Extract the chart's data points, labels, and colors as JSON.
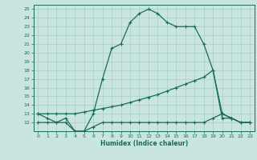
{
  "title": "",
  "xlabel": "Humidex (Indice chaleur)",
  "xlim": [
    -0.5,
    23.5
  ],
  "ylim": [
    11,
    25.5
  ],
  "yticks": [
    12,
    13,
    14,
    15,
    16,
    17,
    18,
    19,
    20,
    21,
    22,
    23,
    24,
    25
  ],
  "xticks": [
    0,
    1,
    2,
    3,
    4,
    5,
    6,
    7,
    8,
    9,
    10,
    11,
    12,
    13,
    14,
    15,
    16,
    17,
    18,
    19,
    20,
    21,
    22,
    23
  ],
  "bg_color": "#c8e6df",
  "line_color": "#1a6b5a",
  "grid_color": "#a8cfc8",
  "line1_x": [
    0,
    1,
    2,
    3,
    4,
    5,
    6,
    7,
    8,
    9,
    10,
    11,
    12,
    13,
    14,
    15,
    16,
    17,
    18,
    19,
    20,
    21,
    22,
    23
  ],
  "line1_y": [
    13,
    12.5,
    12,
    12.5,
    11,
    11,
    13,
    17,
    20.5,
    21,
    23.5,
    24.5,
    25,
    24.5,
    23.5,
    23,
    23,
    23,
    21,
    18,
    13,
    12.5,
    12,
    12
  ],
  "line2_x": [
    0,
    1,
    2,
    3,
    4,
    5,
    6,
    7,
    8,
    9,
    10,
    11,
    12,
    13,
    14,
    15,
    16,
    17,
    18,
    19,
    20,
    21,
    22,
    23
  ],
  "line2_y": [
    13,
    13,
    13,
    13,
    13,
    13.2,
    13.4,
    13.6,
    13.8,
    14,
    14.3,
    14.6,
    14.9,
    15.2,
    15.6,
    16,
    16.4,
    16.8,
    17.2,
    18,
    12.5,
    12.5,
    12,
    12
  ],
  "line3_x": [
    0,
    1,
    2,
    3,
    4,
    5,
    6,
    7,
    8,
    9,
    10,
    11,
    12,
    13,
    14,
    15,
    16,
    17,
    18,
    19,
    20,
    21,
    22,
    23
  ],
  "line3_y": [
    12,
    12,
    12,
    12,
    11,
    11,
    11.5,
    12,
    12,
    12,
    12,
    12,
    12,
    12,
    12,
    12,
    12,
    12,
    12,
    12.5,
    13,
    12.5,
    12,
    12
  ]
}
